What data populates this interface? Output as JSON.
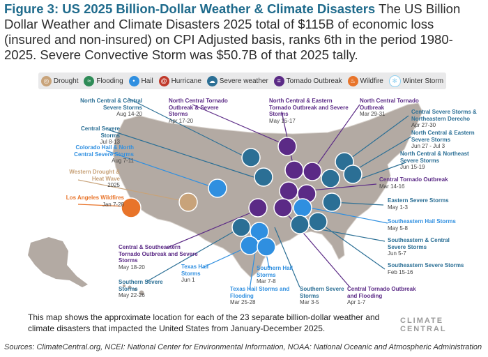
{
  "header": {
    "figure_label": "Figure 3: US 2025 Billion-Dollar Weather & Climate Disasters",
    "description": " The US Billion Dollar Weather and Climate Disasters 2025 total of $115B of economic loss (insured and non-insured) on CPI Adjusted basis, ranks 6th in the period 1980-2025. Severe Convective Storm was $50.7B of that 2025 tally."
  },
  "legend": [
    {
      "label": "Drought",
      "color": "#c8a37a",
      "icon": "drought-icon"
    },
    {
      "label": "Flooding",
      "color": "#2e8b57",
      "icon": "flooding-icon"
    },
    {
      "label": "Hail",
      "color": "#2f8fe0",
      "icon": "hail-icon"
    },
    {
      "label": "Hurricane",
      "color": "#c0392b",
      "icon": "hurricane-icon"
    },
    {
      "label": "Severe weather",
      "color": "#2b6f95",
      "icon": "severe-weather-icon"
    },
    {
      "label": "Tornado Outbreak",
      "color": "#5b2a86",
      "icon": "tornado-icon"
    },
    {
      "label": "Wildfire",
      "color": "#e8742a",
      "icon": "wildfire-icon"
    },
    {
      "label": "Winter Storm",
      "color": "#8fd0f0",
      "icon": "winter-storm-icon"
    }
  ],
  "events": [
    {
      "name": "North Central & Central Severe Storms",
      "date": "Aug 14-20",
      "type": "Severe weather"
    },
    {
      "name": "Central Severe Storms",
      "date": "Jul 8-13",
      "type": "Severe weather"
    },
    {
      "name": "Colorado Hail & North Central Severe Storms",
      "date": "Aug 7-11",
      "type": "Hail"
    },
    {
      "name": "Western Drought & Heat Wave",
      "date": "2025",
      "type": "Drought"
    },
    {
      "name": "Los Angeles Wildfires",
      "date": "Jan 7-28",
      "type": "Wildfire"
    },
    {
      "name": "North Central Tornado Outbreak & Severe Storms",
      "date": "Apr 17-20",
      "type": "Tornado Outbreak"
    },
    {
      "name": "North Central & Eastern Tornado Outbreak and Severe Storms",
      "date": "May 15-17",
      "type": "Tornado Outbreak"
    },
    {
      "name": "North Central Tornado Outbreak",
      "date": "Mar 29-31",
      "type": "Tornado Outbreak"
    },
    {
      "name": "Central Severe Storms & Northeastern Derecho",
      "date": "Apr 27-30",
      "type": "Severe weather"
    },
    {
      "name": "North Central & Eastern Severe Storms",
      "date": "Jun 27 - Jul 3",
      "type": "Severe weather"
    },
    {
      "name": "North Central & Northeast Severe Storms",
      "date": "Jun 15-19",
      "type": "Severe weather"
    },
    {
      "name": "Central Tornado Outbreak",
      "date": "Mar 14-16",
      "type": "Tornado Outbreak"
    },
    {
      "name": "Eastern Severe Storms",
      "date": "May 1-3",
      "type": "Severe weather"
    },
    {
      "name": "Southeastern Hail Storms",
      "date": "May 5-8",
      "type": "Hail"
    },
    {
      "name": "Southeastern & Central Severe Storms",
      "date": "Jun 5-7",
      "type": "Severe weather"
    },
    {
      "name": "Southeastern Severe Storms",
      "date": "Feb 15-16",
      "type": "Severe weather"
    },
    {
      "name": "Central Tornado Outbreak and Flooding",
      "date": "Apr 1-7",
      "type": "Tornado Outbreak"
    },
    {
      "name": "Central & Southeastern Tornado Outbreak and Severe Storms",
      "date": "May 18-20",
      "type": "Tornado Outbreak"
    },
    {
      "name": "Southern Severe Storms",
      "date": "May 22-26",
      "type": "Severe weather"
    },
    {
      "name": "Texas Hail Storms",
      "date": "Jun 1",
      "type": "Hail"
    },
    {
      "name": "Texas Hail Storms and Flooding",
      "date": "Mar 25-28",
      "type": "Hail"
    },
    {
      "name": "Southern Hail Storms",
      "date": "Mar 7-8",
      "type": "Hail"
    },
    {
      "name": "Southern Severe Storms",
      "date": "Mar 3-5",
      "type": "Severe weather"
    }
  ],
  "caption": "This map shows the approximate location for each of the 23 separate billion-dollar weather and climate disasters that impacted the United States from January-December 2025.",
  "brand": "CLIMATE CENTRAL",
  "sources": "Sources: ClimateCentral.org, NCEI: National Center for Environmental Information, NOAA: National Oceanic and Atmospheric Administration"
}
